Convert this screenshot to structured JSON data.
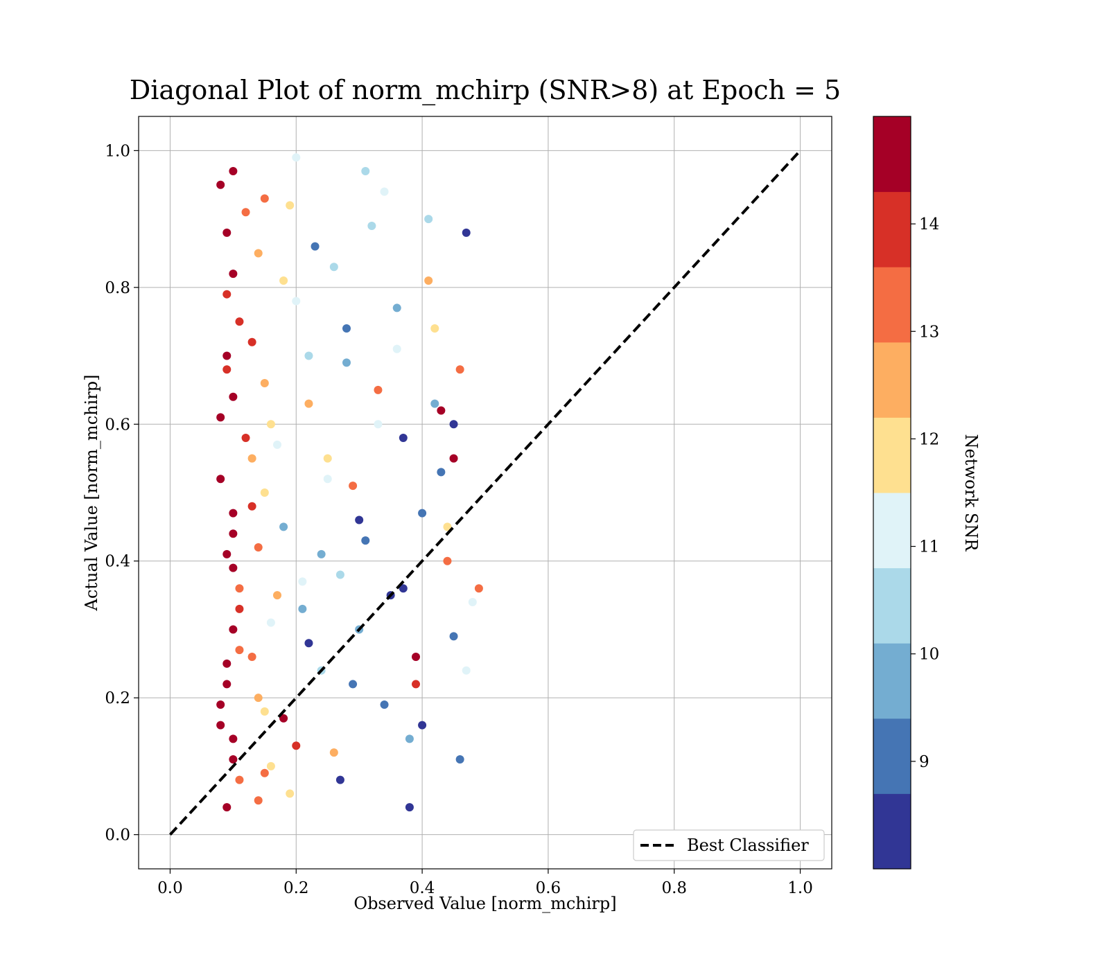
{
  "chart_data": {
    "type": "scatter",
    "title": "Diagonal Plot of norm_mchirp (SNR>8) at Epoch = 5",
    "xlabel": "Observed Value [norm_mchirp]",
    "ylabel": "Actual Value [norm_mchirp]",
    "xlim": [
      -0.05,
      1.05
    ],
    "ylim": [
      -0.05,
      1.05
    ],
    "xticks": [
      0.0,
      0.2,
      0.4,
      0.6,
      0.8,
      1.0
    ],
    "yticks": [
      0.0,
      0.2,
      0.4,
      0.6,
      0.8,
      1.0
    ],
    "xtick_labels": [
      "0.0",
      "0.2",
      "0.4",
      "0.6",
      "0.8",
      "1.0"
    ],
    "ytick_labels": [
      "0.0",
      "0.2",
      "0.4",
      "0.6",
      "0.8",
      "1.0"
    ],
    "grid": true,
    "legend": {
      "placement": "lower-right",
      "entries": [
        "Best Classifier"
      ]
    },
    "reference_line": {
      "name": "Best Classifier",
      "style": "dashed",
      "color": "#000000",
      "x": [
        0.0,
        1.0
      ],
      "y": [
        0.0,
        1.0
      ]
    },
    "colorbar": {
      "label": "Network SNR",
      "range": [
        8,
        15
      ],
      "tick_values": [
        9,
        10,
        11,
        12,
        13,
        14
      ],
      "tick_labels": [
        "9",
        "10",
        "11",
        "12",
        "13",
        "14"
      ],
      "colors": [
        "#313695",
        "#4575b4",
        "#74add1",
        "#abd9e9",
        "#e0f3f8",
        "#fee090",
        "#fdae61",
        "#f46d43",
        "#d73027",
        "#a50026"
      ]
    },
    "series": [
      {
        "values_description_x_range": [
          0.06,
          0.49
        ],
        "x": [
          0.08,
          0.09,
          0.1,
          0.11,
          0.09,
          0.1,
          0.12,
          0.08,
          0.1,
          0.09,
          0.11,
          0.1,
          0.09,
          0.08,
          0.1,
          0.11,
          0.09,
          0.1,
          0.12,
          0.09,
          0.08,
          0.1,
          0.11,
          0.09,
          0.1,
          0.13,
          0.09,
          0.1,
          0.11,
          0.08,
          0.15,
          0.14,
          0.13,
          0.16,
          0.15,
          0.14,
          0.17,
          0.13,
          0.15,
          0.16,
          0.14,
          0.18,
          0.15,
          0.13,
          0.16,
          0.14,
          0.15,
          0.17,
          0.19,
          0.2,
          0.22,
          0.18,
          0.21,
          0.24,
          0.2,
          0.19,
          0.23,
          0.22,
          0.25,
          0.21,
          0.18,
          0.2,
          0.24,
          0.22,
          0.26,
          0.28,
          0.25,
          0.3,
          0.27,
          0.29,
          0.26,
          0.31,
          0.28,
          0.33,
          0.3,
          0.27,
          0.32,
          0.29,
          0.34,
          0.31,
          0.36,
          0.33,
          0.35,
          0.38,
          0.34,
          0.37,
          0.39,
          0.36,
          0.4,
          0.38,
          0.41,
          0.37,
          0.42,
          0.39,
          0.43,
          0.41,
          0.44,
          0.4,
          0.42,
          0.45,
          0.43,
          0.46,
          0.44,
          0.47,
          0.45,
          0.47,
          0.46,
          0.48,
          0.49,
          0.45
        ],
        "y": [
          0.95,
          0.88,
          0.82,
          0.75,
          0.7,
          0.64,
          0.58,
          0.52,
          0.47,
          0.41,
          0.36,
          0.3,
          0.25,
          0.19,
          0.14,
          0.08,
          0.04,
          0.97,
          0.91,
          0.79,
          0.61,
          0.44,
          0.33,
          0.22,
          0.11,
          0.55,
          0.68,
          0.39,
          0.27,
          0.16,
          0.93,
          0.85,
          0.72,
          0.6,
          0.5,
          0.42,
          0.35,
          0.26,
          0.18,
          0.1,
          0.05,
          0.81,
          0.66,
          0.48,
          0.31,
          0.2,
          0.09,
          0.57,
          0.92,
          0.78,
          0.63,
          0.45,
          0.37,
          0.24,
          0.13,
          0.06,
          0.86,
          0.7,
          0.52,
          0.33,
          0.17,
          0.99,
          0.41,
          0.28,
          0.83,
          0.69,
          0.55,
          0.46,
          0.38,
          0.22,
          0.12,
          0.97,
          0.74,
          0.6,
          0.3,
          0.08,
          0.89,
          0.51,
          0.19,
          0.43,
          0.77,
          0.65,
          0.35,
          0.14,
          0.94,
          0.58,
          0.26,
          0.71,
          0.47,
          0.04,
          0.81,
          0.36,
          0.63,
          0.22,
          0.53,
          0.9,
          0.4,
          0.16,
          0.74,
          0.29,
          0.62,
          0.11,
          0.45,
          0.88,
          0.55,
          0.24,
          0.68,
          0.34,
          0.36,
          0.6
        ],
        "snr": [
          14.8,
          14.6,
          14.9,
          14.2,
          14.7,
          14.5,
          13.8,
          14.9,
          14.4,
          14.8,
          13.5,
          14.6,
          14.7,
          14.9,
          14.3,
          13.2,
          14.8,
          14.5,
          13.6,
          14.1,
          14.9,
          14.4,
          13.9,
          14.7,
          14.6,
          12.8,
          14.2,
          14.5,
          13.4,
          14.9,
          13.1,
          12.6,
          13.7,
          12.2,
          11.8,
          12.9,
          12.4,
          13.3,
          11.5,
          12.1,
          13.6,
          11.9,
          12.7,
          14.1,
          11.2,
          12.5,
          13.0,
          10.9,
          11.6,
          10.8,
          12.3,
          9.7,
          11.1,
          10.4,
          13.8,
          12.0,
          9.2,
          10.6,
          11.4,
          9.9,
          14.4,
          11.3,
          10.1,
          8.7,
          10.3,
          9.4,
          11.7,
          8.5,
          10.7,
          9.1,
          12.6,
          10.2,
          8.9,
          11.0,
          9.6,
          8.3,
          10.5,
          12.9,
          8.8,
          9.3,
          10.0,
          13.4,
          8.6,
          9.8,
          11.2,
          8.4,
          14.7,
          10.9,
          9.0,
          8.2,
          12.3,
          8.5,
          9.5,
          14.2,
          8.9,
          10.6,
          13.1,
          8.4,
          11.6,
          8.8,
          14.5,
          9.2,
          12.1,
          8.6,
          14.9,
          11.4,
          13.3,
          10.8,
          13.6,
          8.7
        ]
      }
    ]
  }
}
